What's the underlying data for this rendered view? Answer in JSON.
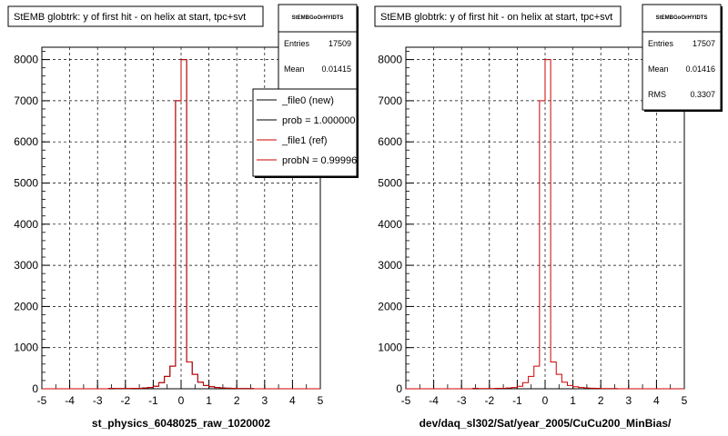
{
  "footer_text": "",
  "panels": [
    {
      "title": "StEMB globtrk: y of first hit - on helix at start, tpc+svt",
      "stats": {
        "header": "StEMBGoOrHYIDTS",
        "rows": [
          {
            "label": "Entries",
            "value": "17509"
          },
          {
            "label": "Mean",
            "value": "0.01415"
          }
        ]
      },
      "legend": {
        "entries": [
          {
            "label": "_file0 (new)",
            "color": "#000000"
          },
          {
            "label": "prob = 1.000000",
            "color": "#000000"
          },
          {
            "label": "_file1 (ref)",
            "color": "#cc0000"
          },
          {
            "label": "probN = 0.99996",
            "color": "#cc0000"
          }
        ]
      },
      "xlabel": "st_physics_6048025_raw_1020002"
    },
    {
      "title": "StEMB globtrk: y of first hit - on helix at start, tpc+svt",
      "stats": {
        "header": "StEMBGoOrHYIDTS",
        "rows": [
          {
            "label": "Entries",
            "value": "17507"
          },
          {
            "label": "Mean",
            "value": "0.01416"
          },
          {
            "label": "RMS",
            "value": "0.3307"
          }
        ]
      },
      "legend": null,
      "xlabel": "dev/daq_sl302/Sat/year_2005/CuCu200_MinBias/"
    }
  ],
  "chart_data": [
    {
      "type": "bar",
      "title": "StEMB globtrk: y of first hit - on helix at start, tpc+svt",
      "xlabel": "st_physics_6048025_raw_1020002",
      "ylabel": "",
      "xlim": [
        -5,
        5
      ],
      "ylim": [
        0,
        8300
      ],
      "xticks": [
        -5,
        -4,
        -3,
        -2,
        -1,
        0,
        1,
        2,
        3,
        4,
        5
      ],
      "yticks": [
        0,
        1000,
        2000,
        3000,
        4000,
        5000,
        6000,
        7000,
        8000
      ],
      "grid": true,
      "histogram": true,
      "bin_edges": [
        -5.0,
        -4.8,
        -4.6,
        -4.4,
        -4.2,
        -4.0,
        -3.8,
        -3.6,
        -3.4,
        -3.2,
        -3.0,
        -2.8,
        -2.6,
        -2.4,
        -2.2,
        -2.0,
        -1.8,
        -1.6,
        -1.4,
        -1.2,
        -1.0,
        -0.8,
        -0.6,
        -0.4,
        -0.2,
        0.0,
        0.2,
        0.4,
        0.6,
        0.8,
        1.0,
        1.2,
        1.4,
        1.6,
        1.8,
        2.0,
        2.2,
        2.4,
        2.6,
        2.8,
        3.0,
        3.2,
        3.4,
        3.6,
        3.8,
        4.0,
        4.2,
        4.4,
        4.6,
        4.8,
        5.0
      ],
      "series": [
        {
          "name": "_file0 (new)",
          "color": "#000000",
          "values": [
            0,
            0,
            0,
            0,
            0,
            0,
            0,
            0,
            0,
            0,
            0,
            0,
            10,
            5,
            5,
            5,
            10,
            10,
            20,
            30,
            60,
            150,
            300,
            550,
            7000,
            8000,
            650,
            350,
            160,
            80,
            50,
            30,
            20,
            15,
            10,
            5,
            5,
            5,
            0,
            0,
            0,
            0,
            0,
            0,
            0,
            0,
            0,
            0,
            0,
            0
          ]
        },
        {
          "name": "_file1 (ref)",
          "color": "#cc0000",
          "values": [
            0,
            0,
            0,
            0,
            0,
            0,
            0,
            0,
            0,
            0,
            0,
            0,
            10,
            5,
            5,
            5,
            10,
            10,
            20,
            30,
            60,
            150,
            300,
            550,
            7000,
            8000,
            650,
            350,
            160,
            80,
            50,
            30,
            20,
            15,
            10,
            5,
            5,
            5,
            0,
            0,
            0,
            0,
            0,
            0,
            0,
            0,
            0,
            0,
            0,
            0
          ]
        }
      ]
    },
    {
      "type": "bar",
      "title": "StEMB globtrk: y of first hit - on helix at start, tpc+svt",
      "xlabel": "dev/daq_sl302/Sat/year_2005/CuCu200_MinBias/",
      "ylabel": "",
      "xlim": [
        -5,
        5
      ],
      "ylim": [
        0,
        8300
      ],
      "xticks": [
        -5,
        -4,
        -3,
        -2,
        -1,
        0,
        1,
        2,
        3,
        4,
        5
      ],
      "yticks": [
        0,
        1000,
        2000,
        3000,
        4000,
        5000,
        6000,
        7000,
        8000
      ],
      "grid": true,
      "histogram": true,
      "bin_edges": [
        -5.0,
        -4.8,
        -4.6,
        -4.4,
        -4.2,
        -4.0,
        -3.8,
        -3.6,
        -3.4,
        -3.2,
        -3.0,
        -2.8,
        -2.6,
        -2.4,
        -2.2,
        -2.0,
        -1.8,
        -1.6,
        -1.4,
        -1.2,
        -1.0,
        -0.8,
        -0.6,
        -0.4,
        -0.2,
        0.0,
        0.2,
        0.4,
        0.6,
        0.8,
        1.0,
        1.2,
        1.4,
        1.6,
        1.8,
        2.0,
        2.2,
        2.4,
        2.6,
        2.8,
        3.0,
        3.2,
        3.4,
        3.6,
        3.8,
        4.0,
        4.2,
        4.4,
        4.6,
        4.8,
        5.0
      ],
      "series": [
        {
          "color": "#cc0000",
          "values": [
            0,
            0,
            0,
            0,
            0,
            0,
            0,
            0,
            0,
            0,
            0,
            0,
            10,
            5,
            5,
            5,
            10,
            10,
            20,
            30,
            60,
            150,
            300,
            550,
            7000,
            8000,
            650,
            350,
            160,
            80,
            50,
            30,
            20,
            15,
            10,
            5,
            5,
            5,
            0,
            0,
            0,
            0,
            0,
            0,
            0,
            0,
            0,
            0,
            0,
            0
          ]
        }
      ]
    }
  ]
}
